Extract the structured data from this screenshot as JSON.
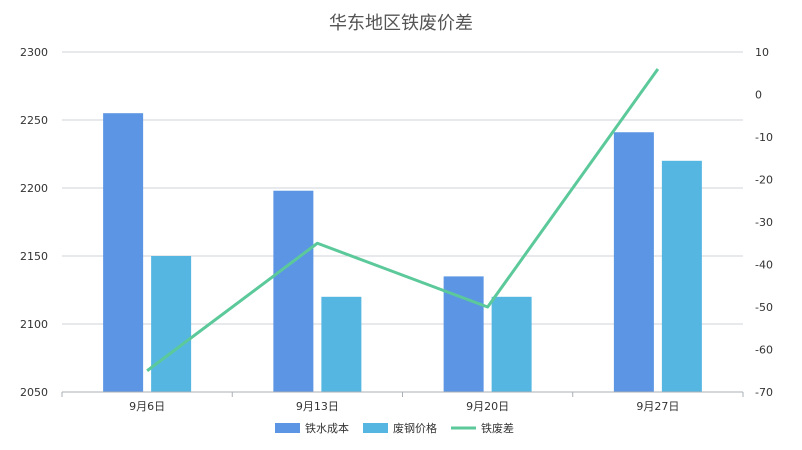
{
  "chart_data": {
    "type": "bar",
    "title": "华东地区铁废价差",
    "categories": [
      "9月6日",
      "9月13日",
      "9月20日",
      "9月27日"
    ],
    "series": [
      {
        "name": "铁水成本",
        "type": "bar",
        "axis": "left",
        "color": "#5b95e3",
        "values": [
          2255,
          2198,
          2135,
          2241
        ]
      },
      {
        "name": "废钢价格",
        "type": "bar",
        "axis": "left",
        "color": "#55b6e2",
        "values": [
          2150,
          2120,
          2120,
          2220
        ]
      },
      {
        "name": "铁废差",
        "type": "line",
        "axis": "right",
        "color": "#5cc99b",
        "values": [
          -65,
          -35,
          -50,
          6
        ]
      }
    ],
    "y_left": {
      "min": 2050,
      "max": 2300,
      "ticks": [
        2050,
        2100,
        2150,
        2200,
        2250,
        2300
      ]
    },
    "y_right": {
      "min": -70,
      "max": 10,
      "ticks": [
        -70,
        -60,
        -50,
        -40,
        -30,
        -20,
        -10,
        0,
        10
      ]
    },
    "legend_position": "bottom",
    "grid": true
  }
}
